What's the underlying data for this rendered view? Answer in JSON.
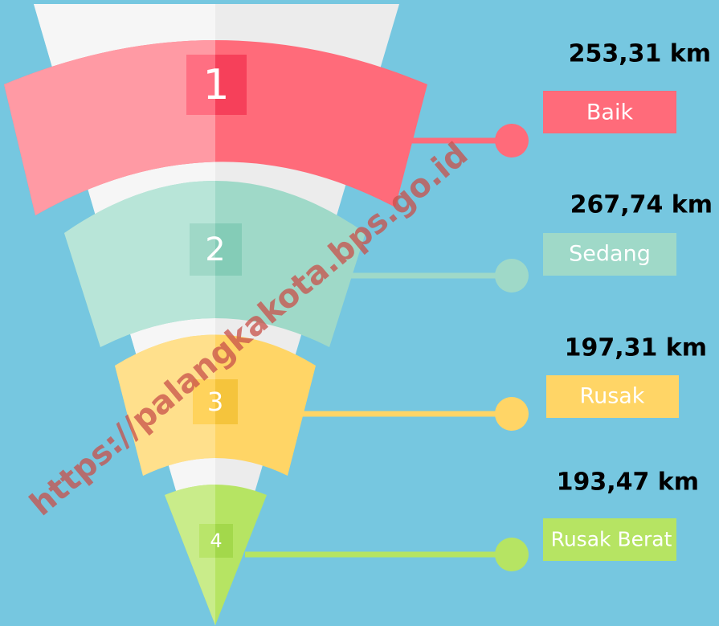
{
  "items": [
    {
      "number": "1",
      "value": "253,31 km",
      "label": "Baik"
    },
    {
      "number": "2",
      "value": "267,74 km",
      "label": "Sedang"
    },
    {
      "number": "3",
      "value": "197,31 km",
      "label": "Rusak"
    },
    {
      "number": "4",
      "value": "193,47 km",
      "label": "Rusak Berat"
    }
  ],
  "watermark": "https://palangkakota.bps.go.id"
}
